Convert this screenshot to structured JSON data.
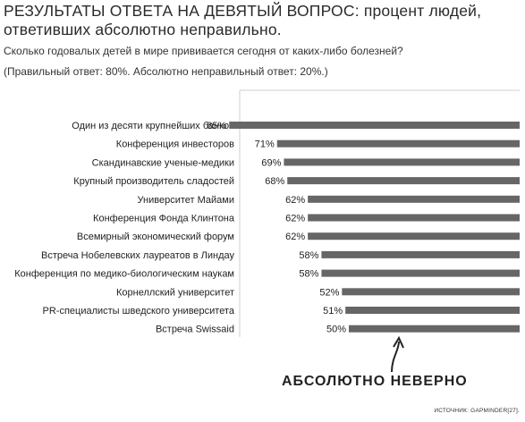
{
  "header": {
    "title_part1": "Результаты ответа на девятый вопрос:",
    "title_part2": " процент людей, ответивших абсолютно неправильно.",
    "subtitle": "Сколько годовалых детей в мире прививается сегодня от каких-либо болезней?",
    "note": "(Правильный ответ: 80%. Абсолютно неправильный ответ: 20%.)"
  },
  "chart_data": {
    "type": "bar",
    "orientation": "horizontal",
    "categories": [
      "Один из десяти крупнейших банков",
      "Конференция инвесторов",
      "Скандинавские ученые-медики",
      "Крупный производитель сладостей",
      "Университет Майами",
      "Конференция Фонда Клинтона",
      "Всемирный экономический форум",
      "Встреча Нобелевских лауреатов в Линдау",
      "Конференция по медико-биологическим наукам",
      "Корнеллский университет",
      "PR-специалисты шведского университета",
      "Встреча Swissaid"
    ],
    "values": [
      85,
      71,
      69,
      68,
      62,
      62,
      62,
      58,
      58,
      52,
      51,
      50
    ],
    "value_labels": [
      "85%",
      "71%",
      "69%",
      "68%",
      "62%",
      "62%",
      "62%",
      "58%",
      "58%",
      "52%",
      "51%",
      "50%"
    ],
    "xlim": [
      0,
      100
    ],
    "bar_color": "#666666",
    "frame_color": "#cfcfcf",
    "grid": false
  },
  "callout": {
    "text": "АБСОЛЮТНО НЕВЕРНО",
    "arrow_icon": "curved-arrow-up-icon"
  },
  "source": "ИСТОЧНИК: GAPMINDER[27]."
}
